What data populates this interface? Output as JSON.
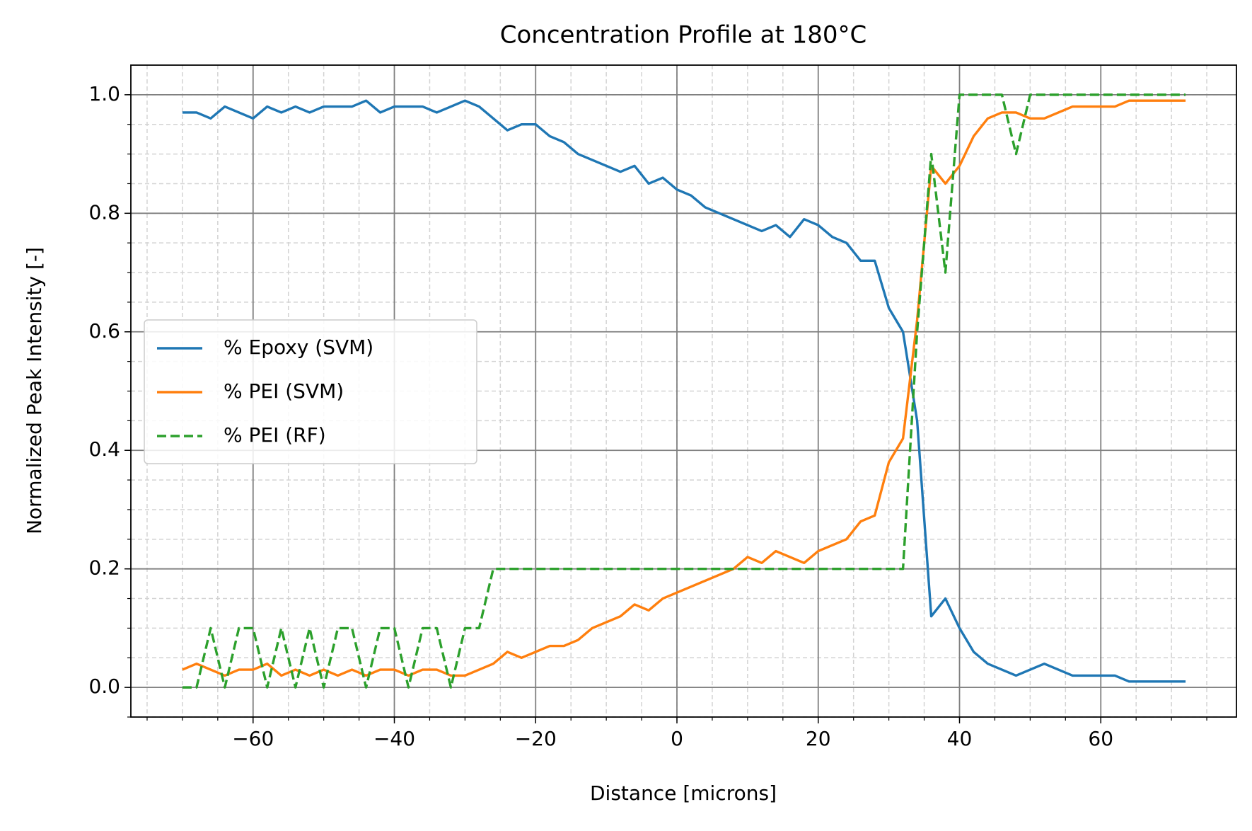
{
  "chart_data": {
    "type": "line",
    "title": "Concentration Profile at 180°C",
    "xlabel": "Distance [microns]",
    "ylabel": "Normalized Peak Intensity [-]",
    "x": [
      -70,
      -68,
      -66,
      -64,
      -62,
      -60,
      -58,
      -56,
      -54,
      -52,
      -50,
      -48,
      -46,
      -44,
      -42,
      -40,
      -38,
      -36,
      -34,
      -32,
      -30,
      -28,
      -26,
      -24,
      -22,
      -20,
      -18,
      -16,
      -14,
      -12,
      -10,
      -8,
      -6,
      -4,
      -2,
      0,
      2,
      4,
      6,
      8,
      10,
      12,
      14,
      16,
      18,
      20,
      22,
      24,
      26,
      28,
      30,
      32,
      34,
      36,
      38,
      40,
      42,
      44,
      46,
      48,
      50,
      52,
      54,
      56,
      58,
      60,
      62,
      64,
      66,
      68,
      70,
      72
    ],
    "series": [
      {
        "name": "% Epoxy (SVM)",
        "color": "#1f77b4",
        "dash": false,
        "values": [
          0.97,
          0.97,
          0.96,
          0.98,
          0.97,
          0.96,
          0.98,
          0.97,
          0.98,
          0.97,
          0.98,
          0.98,
          0.98,
          0.99,
          0.97,
          0.98,
          0.98,
          0.98,
          0.97,
          0.98,
          0.99,
          0.98,
          0.96,
          0.94,
          0.95,
          0.95,
          0.93,
          0.92,
          0.9,
          0.89,
          0.88,
          0.87,
          0.88,
          0.85,
          0.86,
          0.84,
          0.83,
          0.81,
          0.8,
          0.79,
          0.78,
          0.77,
          0.78,
          0.76,
          0.79,
          0.78,
          0.76,
          0.75,
          0.72,
          0.72,
          0.64,
          0.6,
          0.45,
          0.12,
          0.15,
          0.1,
          0.06,
          0.04,
          0.03,
          0.02,
          0.03,
          0.04,
          0.03,
          0.02,
          0.02,
          0.02,
          0.02,
          0.01,
          0.01,
          0.01,
          0.01,
          0.01
        ]
      },
      {
        "name": "% PEI (SVM)",
        "color": "#ff7f0e",
        "dash": false,
        "values": [
          0.03,
          0.04,
          0.03,
          0.02,
          0.03,
          0.03,
          0.04,
          0.02,
          0.03,
          0.02,
          0.03,
          0.02,
          0.03,
          0.02,
          0.03,
          0.03,
          0.02,
          0.03,
          0.03,
          0.02,
          0.02,
          0.03,
          0.04,
          0.06,
          0.05,
          0.06,
          0.07,
          0.07,
          0.08,
          0.1,
          0.11,
          0.12,
          0.14,
          0.13,
          0.15,
          0.16,
          0.17,
          0.18,
          0.19,
          0.2,
          0.22,
          0.21,
          0.23,
          0.22,
          0.21,
          0.23,
          0.24,
          0.25,
          0.28,
          0.29,
          0.38,
          0.42,
          0.62,
          0.88,
          0.85,
          0.88,
          0.93,
          0.96,
          0.97,
          0.97,
          0.96,
          0.96,
          0.97,
          0.98,
          0.98,
          0.98,
          0.98,
          0.99,
          0.99,
          0.99,
          0.99,
          0.99
        ]
      },
      {
        "name": "% PEI (RF)",
        "color": "#2ca02c",
        "dash": true,
        "values": [
          0,
          0,
          0.1,
          0,
          0.1,
          0.1,
          0,
          0.1,
          0,
          0.1,
          0,
          0.1,
          0.1,
          0,
          0.1,
          0.1,
          0,
          0.1,
          0.1,
          0,
          0.1,
          0.1,
          0.2,
          0.2,
          0.2,
          0.2,
          0.2,
          0.2,
          0.2,
          0.2,
          0.2,
          0.2,
          0.2,
          0.2,
          0.2,
          0.2,
          0.2,
          0.2,
          0.2,
          0.2,
          0.2,
          0.2,
          0.2,
          0.2,
          0.2,
          0.2,
          0.2,
          0.2,
          0.2,
          0.2,
          0.2,
          0.2,
          0.6,
          0.9,
          0.7,
          1.0,
          1.0,
          1.0,
          1.0,
          0.9,
          1.0,
          1.0,
          1.0,
          1.0,
          1.0,
          1.0,
          1.0,
          1.0,
          1.0,
          1.0,
          1.0,
          1.0
        ]
      }
    ],
    "xlim": [
      -77.3,
      79.2
    ],
    "ylim": [
      -0.05,
      1.05
    ],
    "xticks": [
      {
        "value": -60,
        "label": "−60"
      },
      {
        "value": -40,
        "label": "−40"
      },
      {
        "value": -20,
        "label": "−20"
      },
      0,
      20,
      40,
      60
    ],
    "yticks": [
      {
        "value": 0,
        "label": "0.0"
      },
      {
        "value": 0.2,
        "label": "0.2"
      },
      {
        "value": 0.4,
        "label": "0.4"
      },
      {
        "value": 0.6,
        "label": "0.6"
      },
      {
        "value": 0.8,
        "label": "0.8"
      },
      {
        "value": 1,
        "label": "1.0"
      }
    ],
    "grid": true,
    "minor_grid": true,
    "legend": "center left"
  }
}
